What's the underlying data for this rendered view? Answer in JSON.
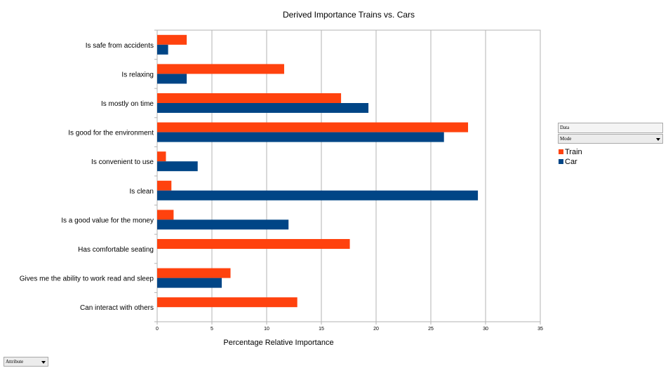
{
  "chart_data": {
    "type": "bar",
    "orientation": "horizontal",
    "title": "Derived Importance Trains vs. Cars",
    "xlabel": "Percentage Relative Importance",
    "ylabel": "",
    "xlim": [
      0,
      35
    ],
    "x_ticks": [
      "0",
      "5",
      "10",
      "15",
      "20",
      "25",
      "30",
      "35"
    ],
    "grid": true,
    "legend_placement": "right",
    "categories": [
      "Is safe from accidents",
      "Is relaxing",
      "Is mostly on time",
      "Is good for the environment",
      "Is convenient to use",
      "Is clean",
      "Is a good value for the money",
      "Has comfortable seating",
      "Gives me the ability to work read and sleep",
      "Can interact with others"
    ],
    "series": [
      {
        "name": "Train",
        "color": "#ff420e",
        "values": [
          2.7,
          11.6,
          16.8,
          28.4,
          0.8,
          1.3,
          1.5,
          17.6,
          6.7,
          12.8
        ]
      },
      {
        "name": "Car",
        "color": "#004586",
        "values": [
          1.0,
          2.7,
          19.3,
          26.2,
          3.7,
          29.3,
          12.0,
          0,
          5.9,
          0
        ]
      }
    ]
  },
  "controls": {
    "data_field": "Data",
    "mode_field": "Mode",
    "attribute_field": "Attribute"
  }
}
